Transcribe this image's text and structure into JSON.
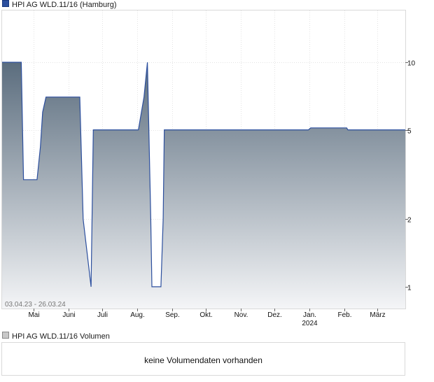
{
  "price_legend": {
    "label": "HPI AG WLD.11/16 (Hamburg)",
    "color": "#2c4f9e"
  },
  "volume_legend": {
    "label": "HPI AG WLD.11/16 Volumen",
    "color": "#c8c8c8"
  },
  "volume_panel": {
    "message": "keine Volumendaten vorhanden"
  },
  "chart_data": {
    "type": "area",
    "date_range": "03.04.23 - 26.03.24",
    "y_scale": "log",
    "ylim": [
      0.8,
      17
    ],
    "xlim": [
      "2023-04-03",
      "2024-03-26"
    ],
    "y_ticks": [
      10,
      5,
      2,
      1
    ],
    "x_ticks": [
      {
        "date": "2023-05-01",
        "label": "Mai",
        "sub": ""
      },
      {
        "date": "2023-06-01",
        "label": "Juni",
        "sub": ""
      },
      {
        "date": "2023-07-01",
        "label": "Juli",
        "sub": ""
      },
      {
        "date": "2023-08-01",
        "label": "Aug.",
        "sub": ""
      },
      {
        "date": "2023-09-01",
        "label": "Sep.",
        "sub": ""
      },
      {
        "date": "2023-10-01",
        "label": "Okt.",
        "sub": ""
      },
      {
        "date": "2023-11-01",
        "label": "Nov.",
        "sub": ""
      },
      {
        "date": "2023-12-01",
        "label": "Dez.",
        "sub": ""
      },
      {
        "date": "2024-01-01",
        "label": "Jan.",
        "sub": "2024"
      },
      {
        "date": "2024-02-01",
        "label": "Feb.",
        "sub": ""
      },
      {
        "date": "2024-03-01",
        "label": "März",
        "sub": ""
      }
    ],
    "grid": true,
    "series": [
      {
        "line_color": "#2c4f9e",
        "fill_top": "#5b6d7e",
        "fill_bottom": "#f4f5f7",
        "points": [
          [
            "2023-04-03",
            10.0
          ],
          [
            "2023-04-20",
            10.0
          ],
          [
            "2023-04-22",
            3.0
          ],
          [
            "2023-05-04",
            3.0
          ],
          [
            "2023-05-07",
            4.2
          ],
          [
            "2023-05-09",
            6.0
          ],
          [
            "2023-05-12",
            7.0
          ],
          [
            "2023-06-11",
            7.0
          ],
          [
            "2023-06-14",
            2.0
          ],
          [
            "2023-06-21",
            1.0
          ],
          [
            "2023-06-23",
            5.0
          ],
          [
            "2023-07-27",
            5.0
          ],
          [
            "2023-08-02",
            5.0
          ],
          [
            "2023-08-07",
            7.0
          ],
          [
            "2023-08-10",
            10.0
          ],
          [
            "2023-08-13",
            2.0
          ],
          [
            "2023-08-14",
            1.0
          ],
          [
            "2023-08-22",
            1.0
          ],
          [
            "2023-08-24",
            2.0
          ],
          [
            "2023-08-25",
            5.0
          ],
          [
            "2023-12-31",
            5.0
          ],
          [
            "2024-01-02",
            5.1
          ],
          [
            "2024-02-03",
            5.1
          ],
          [
            "2024-02-04",
            5.0
          ],
          [
            "2024-03-26",
            5.0
          ]
        ]
      }
    ]
  }
}
